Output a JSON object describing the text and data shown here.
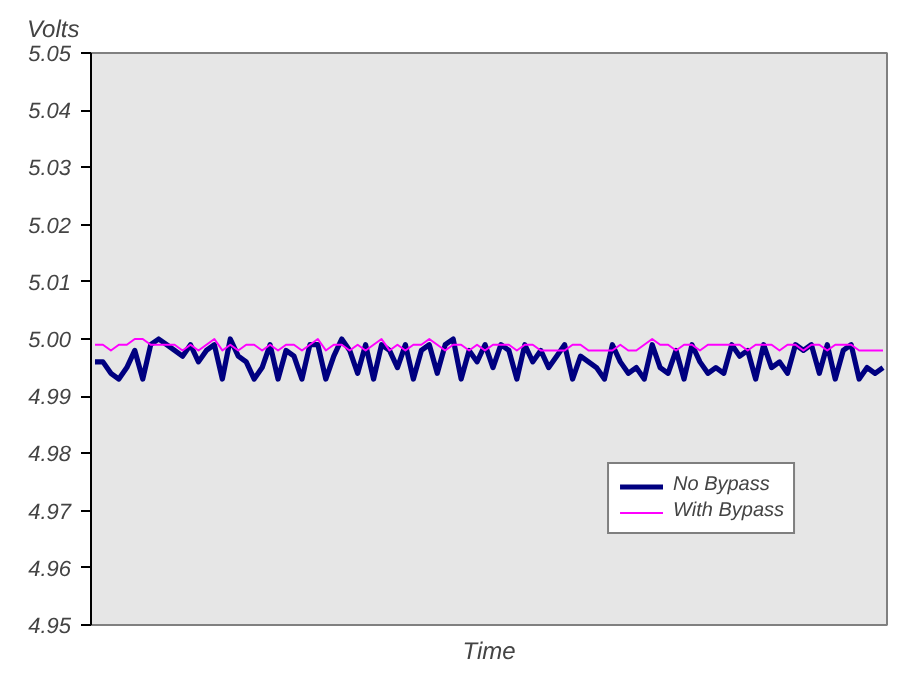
{
  "chart_data": {
    "type": "line",
    "xlabel": "Time",
    "ylabel": "Volts",
    "categories": [
      null,
      null,
      null,
      null,
      null,
      null,
      null,
      null,
      null,
      null,
      null,
      null,
      null,
      null,
      null,
      null,
      null,
      null,
      null,
      null,
      null,
      null,
      null,
      null,
      null,
      null,
      null,
      null,
      null,
      null,
      null,
      null,
      null,
      null,
      null,
      null,
      null,
      null,
      null,
      null,
      null,
      null,
      null,
      null,
      null,
      null,
      null,
      null,
      null,
      null,
      null,
      null,
      null,
      null,
      null,
      null,
      null,
      null,
      null,
      null,
      null,
      null,
      null,
      null,
      null,
      null,
      null,
      null,
      null,
      null,
      null,
      null,
      null,
      null,
      null,
      null,
      null,
      null,
      null,
      null,
      null,
      null,
      null,
      null,
      null,
      null,
      null,
      null,
      null,
      null,
      null,
      null,
      null,
      null,
      null,
      null,
      null,
      null,
      null,
      null
    ],
    "series": [
      {
        "name": "No Bypass",
        "color": "#000080",
        "values": [
          4.996,
          4.996,
          4.994,
          4.993,
          4.995,
          4.998,
          4.993,
          4.999,
          5.0,
          4.999,
          4.998,
          4.997,
          4.999,
          4.996,
          4.998,
          4.999,
          4.993,
          5.0,
          4.997,
          4.996,
          4.993,
          4.995,
          4.999,
          4.993,
          4.998,
          4.997,
          4.993,
          4.999,
          4.999,
          4.993,
          4.997,
          5.0,
          4.998,
          4.994,
          4.999,
          4.993,
          4.999,
          4.998,
          4.995,
          4.999,
          4.993,
          4.998,
          4.999,
          4.994,
          4.999,
          5.0,
          4.993,
          4.998,
          4.996,
          4.999,
          4.995,
          4.999,
          4.998,
          4.993,
          4.999,
          4.996,
          4.998,
          4.995,
          4.997,
          4.999,
          4.993,
          4.997,
          4.996,
          4.995,
          4.993,
          4.999,
          4.996,
          4.994,
          4.995,
          4.993,
          4.999,
          4.995,
          4.994,
          4.998,
          4.993,
          4.999,
          4.996,
          4.994,
          4.995,
          4.994,
          4.999,
          4.997,
          4.998,
          4.993,
          4.999,
          4.995,
          4.996,
          4.994,
          4.999,
          4.998,
          4.999,
          4.994,
          4.999,
          4.993,
          4.998,
          4.999,
          4.993,
          4.995,
          4.994,
          4.995
        ]
      },
      {
        "name": "With Bypass",
        "color": "#ff00ff",
        "values": [
          4.999,
          4.999,
          4.998,
          4.999,
          4.999,
          5.0,
          5.0,
          4.999,
          4.999,
          4.999,
          4.999,
          4.998,
          4.999,
          4.998,
          4.999,
          5.0,
          4.998,
          4.999,
          4.998,
          4.999,
          4.999,
          4.998,
          4.999,
          4.998,
          4.999,
          4.999,
          4.998,
          4.999,
          5.0,
          4.998,
          4.999,
          4.999,
          4.998,
          4.999,
          4.998,
          4.999,
          5.0,
          4.998,
          4.999,
          4.998,
          4.999,
          4.999,
          5.0,
          4.999,
          4.998,
          4.999,
          4.999,
          4.998,
          4.999,
          4.998,
          4.999,
          4.999,
          4.999,
          4.998,
          4.999,
          4.999,
          4.998,
          4.998,
          4.998,
          4.998,
          4.999,
          4.999,
          4.998,
          4.998,
          4.998,
          4.998,
          4.999,
          4.998,
          4.998,
          4.999,
          5.0,
          4.999,
          4.999,
          4.998,
          4.999,
          4.999,
          4.998,
          4.999,
          4.999,
          4.999,
          4.999,
          4.999,
          4.998,
          4.999,
          4.999,
          4.999,
          4.998,
          4.999,
          4.999,
          4.998,
          4.999,
          4.999,
          4.998,
          4.999,
          4.999,
          4.999,
          4.998,
          4.998,
          4.998,
          4.998
        ]
      }
    ],
    "ylim": [
      4.95,
      5.05
    ],
    "yticks": [
      {
        "value": 4.95,
        "label": "4.95"
      },
      {
        "value": 4.96,
        "label": "4.96"
      },
      {
        "value": 4.97,
        "label": "4.97"
      },
      {
        "value": 4.98,
        "label": "4.98"
      },
      {
        "value": 4.99,
        "label": "4.99"
      },
      {
        "value": 5.0,
        "label": "5.00"
      },
      {
        "value": 5.01,
        "label": "5.01"
      },
      {
        "value": 5.02,
        "label": "5.02"
      },
      {
        "value": 5.03,
        "label": "5.03"
      },
      {
        "value": 5.04,
        "label": "5.04"
      },
      {
        "value": 5.05,
        "label": "5.05"
      }
    ],
    "tick_labels": "y",
    "grid": false,
    "legend": "bottom right",
    "marker": "none",
    "line_style": "solid"
  }
}
